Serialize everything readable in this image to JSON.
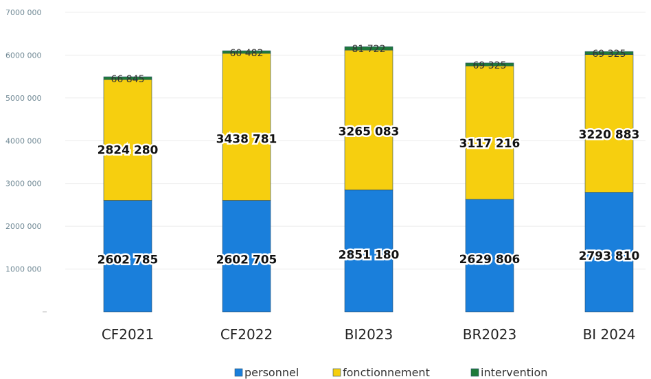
{
  "chart_data": {
    "type": "bar",
    "stacked": true,
    "categories": [
      "CF2021",
      "CF2022",
      "BI2023",
      "BR2023",
      "BI 2024"
    ],
    "series": [
      {
        "name": "personnel",
        "color": "#1a7fdb",
        "values": [
          2602785,
          2602705,
          2851180,
          2629806,
          2793810
        ],
        "labels": [
          "2602 785",
          "2602 705",
          "2851 180",
          "2629 806",
          "2793 810"
        ]
      },
      {
        "name": "fonctionnement",
        "color": "#f6cf0f",
        "values": [
          2824280,
          3438781,
          3265083,
          3117216,
          3220883
        ],
        "labels": [
          "2824 280",
          "3438 781",
          "3265 083",
          "3117 216",
          "3220 883"
        ]
      },
      {
        "name": "intervention",
        "color": "#1f7a3a",
        "values": [
          66845,
          60482,
          81722,
          69325,
          69325
        ],
        "labels": [
          "66 845",
          "60 482",
          "81 722",
          "69 325",
          "69 325"
        ]
      }
    ],
    "ylim": [
      0,
      7000000
    ],
    "yticks": [
      1000000,
      2000000,
      3000000,
      4000000,
      5000000,
      6000000,
      7000000
    ],
    "ytick_labels": [
      "1000 000",
      "2000 000",
      "3000 000",
      "4000 000",
      "5000 000",
      "6000 000",
      "7000 000"
    ],
    "grid": true,
    "legend_position": "bottom"
  }
}
